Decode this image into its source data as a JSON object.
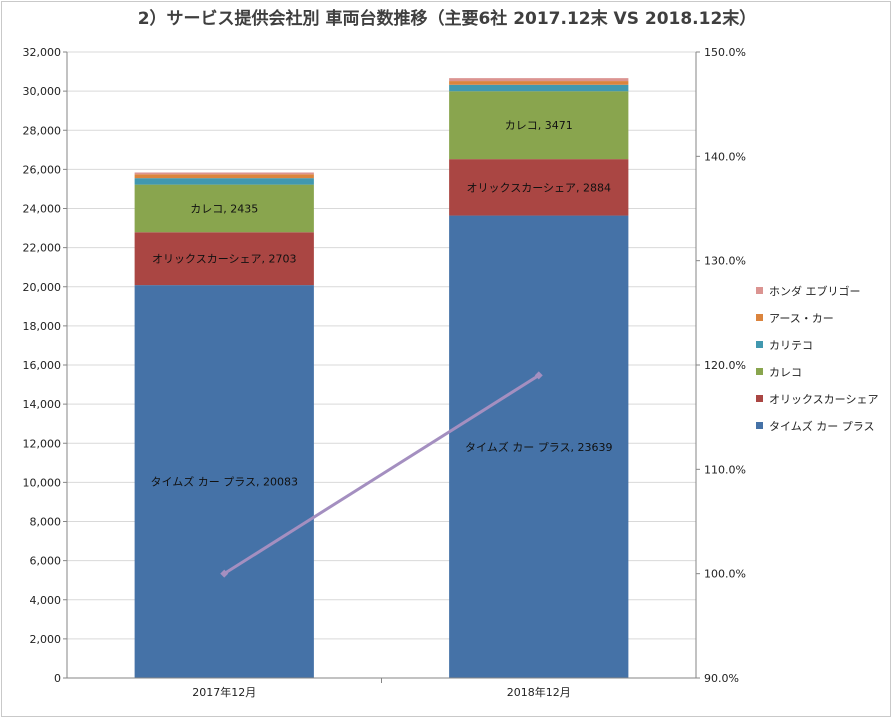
{
  "title": "2）サービス提供会社別 車両台数推移（主要6社 2017.12末 VS 2018.12末）",
  "chart_data": {
    "type": "bar",
    "stacked": true,
    "categories": [
      "2017年12月",
      "2018年12月"
    ],
    "ylim": [
      0,
      32000
    ],
    "y_ticks": [
      "0",
      "2,000",
      "4,000",
      "6,000",
      "8,000",
      "10,000",
      "12,000",
      "14,000",
      "16,000",
      "18,000",
      "20,000",
      "22,000",
      "24,000",
      "26,000",
      "28,000",
      "30,000",
      "32,000"
    ],
    "y2lim": [
      90,
      150
    ],
    "y2_ticks": [
      "90.0%",
      "100.0%",
      "110.0%",
      "120.0%",
      "130.0%",
      "140.0%",
      "150.0%"
    ],
    "grid": true,
    "legend_position": "right",
    "series": [
      {
        "name": "タイムズ カー プラス",
        "color": "#4572a7",
        "values": [
          20083,
          23639
        ],
        "labels": [
          "タイムズ カー プラス, 20083",
          "タイムズ カー プラス, 23639"
        ]
      },
      {
        "name": "オリックスカーシェア",
        "color": "#aa4643",
        "values": [
          2703,
          2884
        ],
        "labels": [
          "オリックスカーシェア, 2703",
          "オリックスカーシェア, 2884"
        ]
      },
      {
        "name": "カレコ",
        "color": "#89a54e",
        "values": [
          2435,
          3471
        ],
        "labels": [
          "カレコ, 2435",
          "カレコ, 3471"
        ]
      },
      {
        "name": "カリテコ",
        "color": "#4198af",
        "values": [
          330,
          330
        ]
      },
      {
        "name": "アース・カー",
        "color": "#db843d",
        "values": [
          200,
          190
        ]
      },
      {
        "name": "ホンダ エブリゴー",
        "color": "#db9491",
        "values": [
          90,
          150
        ]
      }
    ],
    "line": {
      "color": "#a48fc0",
      "axis": "secondary",
      "values": [
        100.0,
        119.0
      ]
    }
  }
}
